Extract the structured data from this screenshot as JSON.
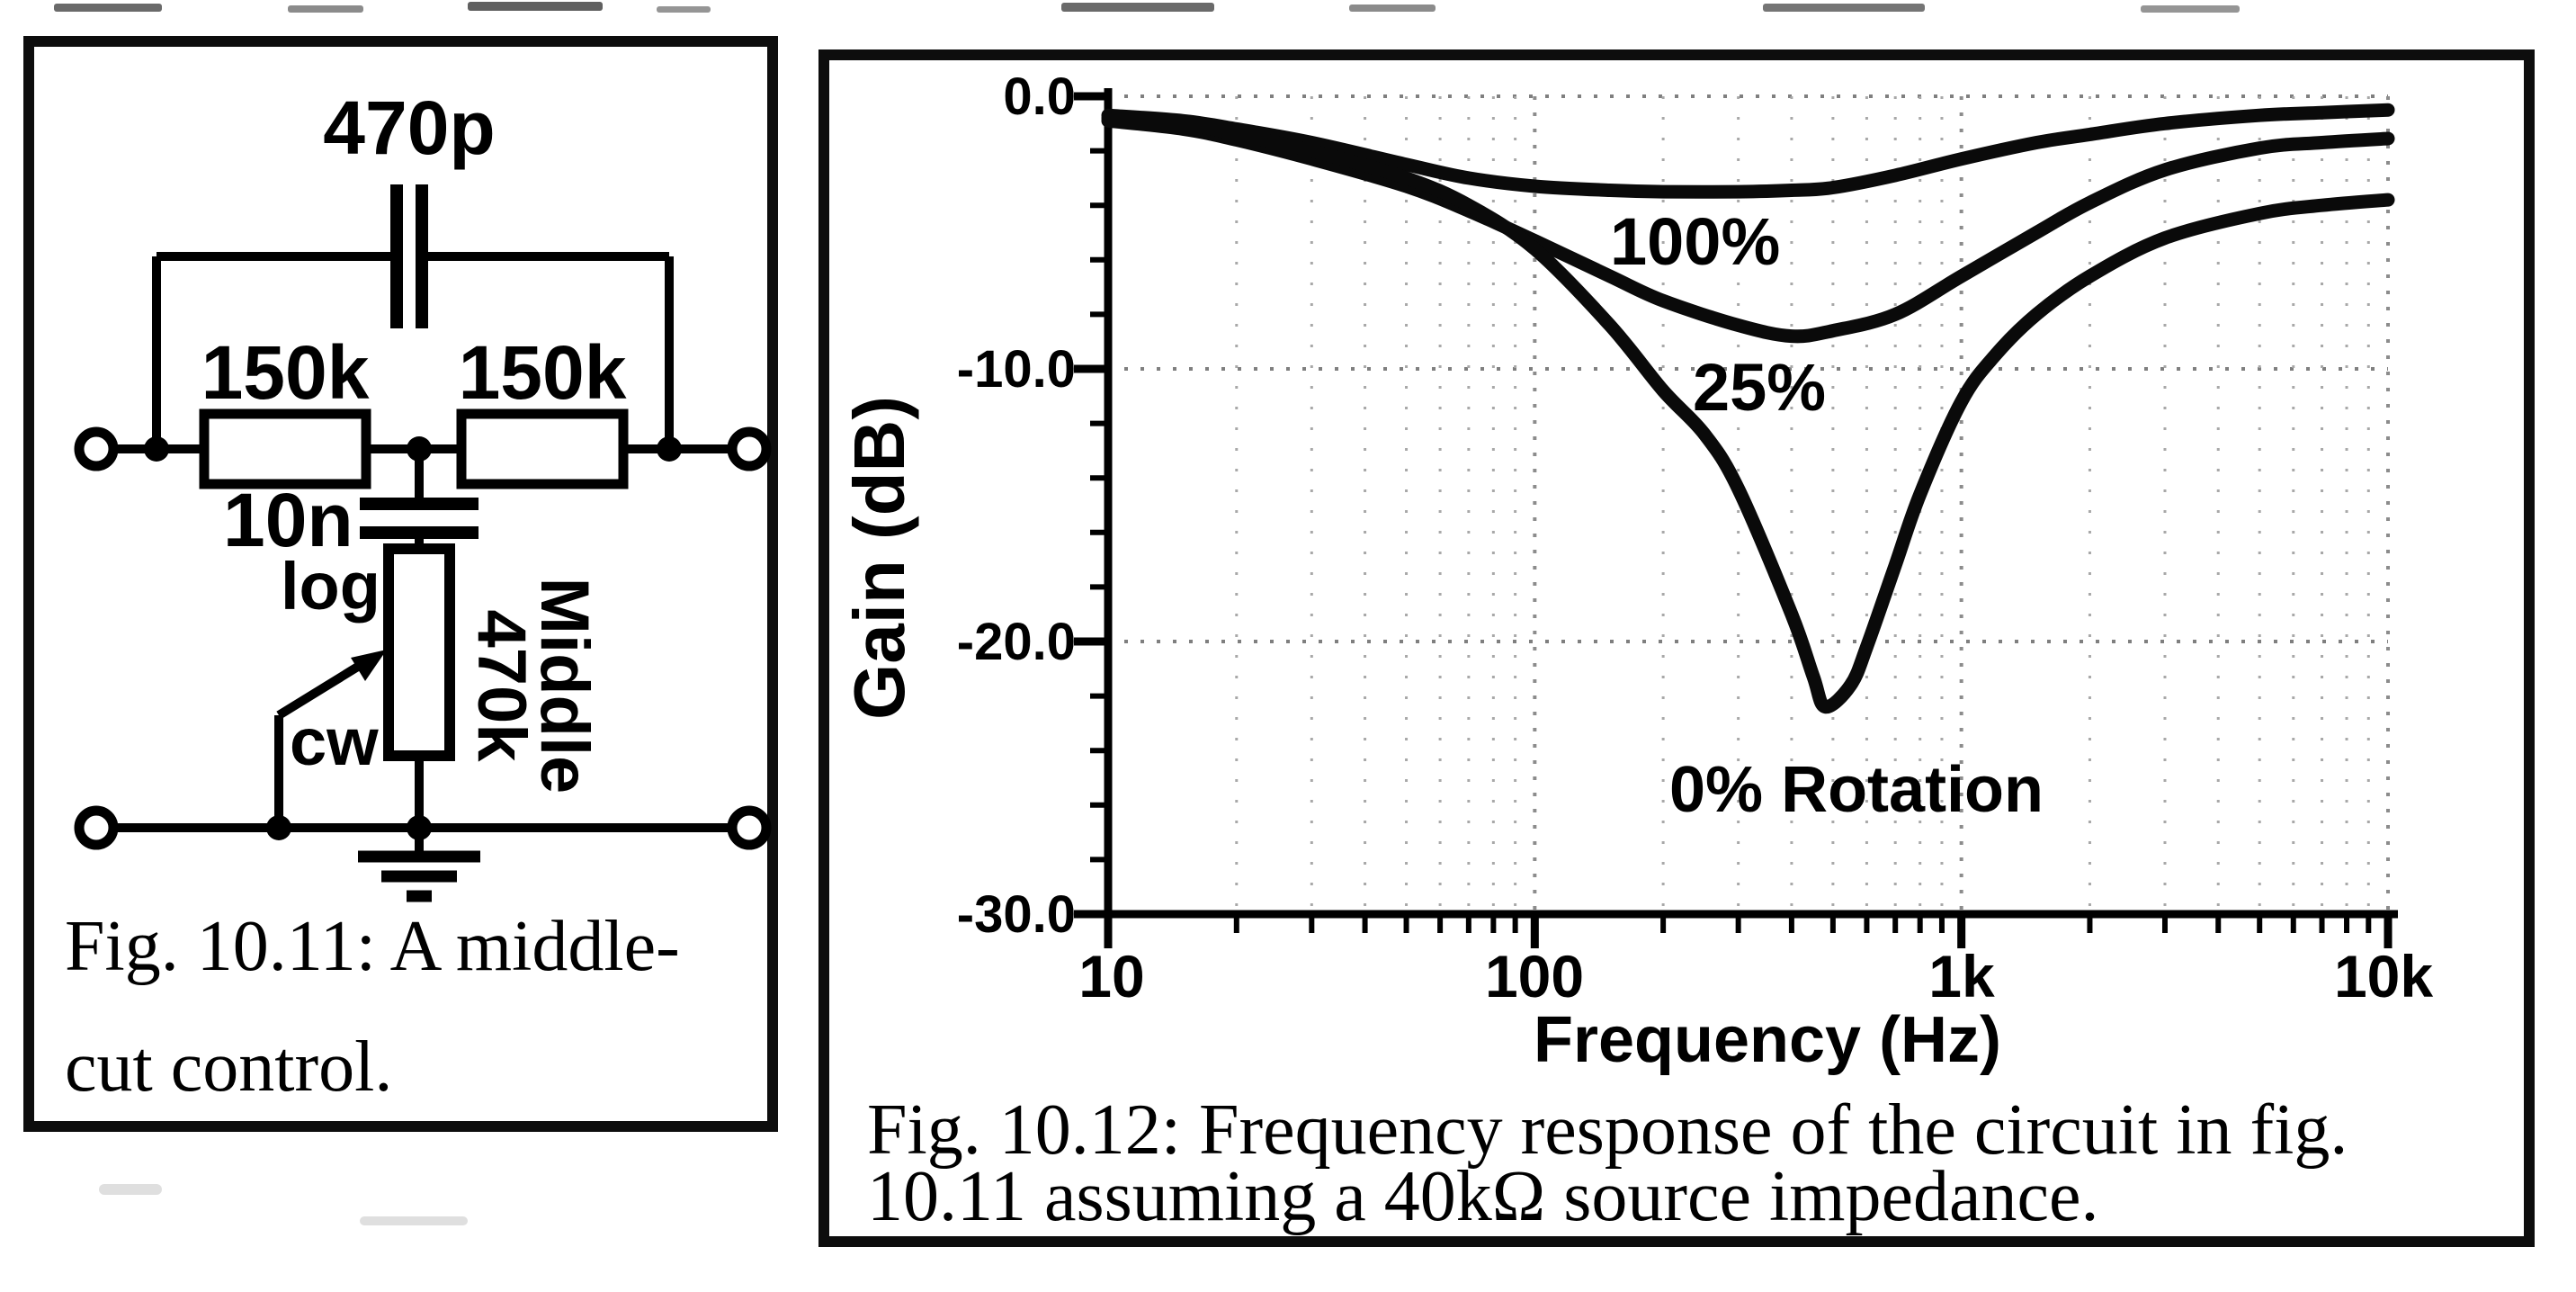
{
  "fig1": {
    "caption": {
      "line1": "Fig. 10.11: A middle-",
      "line2": "cut control."
    },
    "components": {
      "top_capacitor": "470p",
      "left_resistor": "150k",
      "right_resistor": "150k",
      "mid_capacitor": "10n",
      "pot_taper": "log",
      "pot_cw": "cw",
      "pot_name": "Middle",
      "pot_value": "470k"
    }
  },
  "fig2": {
    "caption": {
      "line1": "Fig. 10.12: Frequency response of the circuit in fig.",
      "line2": "10.11 assuming a 40kΩ source impedance."
    }
  },
  "chart_data": {
    "type": "line",
    "title": "",
    "xlabel": "Frequency (Hz)",
    "ylabel": "Gain (dB)",
    "x_scale": "log",
    "xlim": [
      10,
      10000
    ],
    "ylim": [
      -30,
      0
    ],
    "x_tick_values": [
      10,
      100,
      1000,
      10000
    ],
    "x_tick_labels": [
      "10",
      "100",
      "1k",
      "10k"
    ],
    "y_tick_values": [
      0,
      -10,
      -20,
      -30
    ],
    "y_tick_labels": [
      "0.0",
      "-10.0",
      "-20.0",
      "-30.0"
    ],
    "y_minor_step": 2,
    "grid": "dotted",
    "line_color": "#0a0a0a",
    "series": [
      {
        "name": "100%",
        "x": [
          10,
          15,
          20,
          30,
          50,
          70,
          100,
          150,
          200,
          300,
          400,
          500,
          700,
          1000,
          1500,
          2000,
          3000,
          5000,
          7000,
          10000
        ],
        "y": [
          -0.7,
          -0.9,
          -1.2,
          -1.7,
          -2.5,
          -3.0,
          -3.3,
          -3.45,
          -3.5,
          -3.5,
          -3.45,
          -3.35,
          -2.9,
          -2.3,
          -1.7,
          -1.4,
          -1.0,
          -0.7,
          -0.6,
          -0.5
        ]
      },
      {
        "name": "25%",
        "x": [
          10,
          15,
          20,
          30,
          50,
          70,
          100,
          150,
          200,
          300,
          400,
          500,
          700,
          1000,
          1500,
          2000,
          3000,
          5000,
          7000,
          10000
        ],
        "y": [
          -0.9,
          -1.2,
          -1.6,
          -2.3,
          -3.3,
          -4.2,
          -5.3,
          -6.6,
          -7.5,
          -8.4,
          -8.8,
          -8.6,
          -8.0,
          -6.6,
          -5.0,
          -3.9,
          -2.7,
          -1.9,
          -1.7,
          -1.55
        ]
      },
      {
        "name": "0% Rotation",
        "x": [
          10,
          15,
          20,
          30,
          50,
          70,
          100,
          150,
          200,
          250,
          300,
          400,
          450,
          480,
          550,
          600,
          700,
          800,
          1000,
          1200,
          1500,
          2000,
          3000,
          5000,
          7000,
          10000
        ],
        "y": [
          -0.8,
          -1.0,
          -1.4,
          -2.0,
          -3.0,
          -4.0,
          -5.6,
          -8.4,
          -10.8,
          -12.4,
          -14.4,
          -19.0,
          -21.3,
          -22.4,
          -21.6,
          -20.2,
          -17.2,
          -14.6,
          -11.2,
          -9.5,
          -8.0,
          -6.6,
          -5.2,
          -4.3,
          -4.0,
          -3.8
        ]
      }
    ]
  }
}
